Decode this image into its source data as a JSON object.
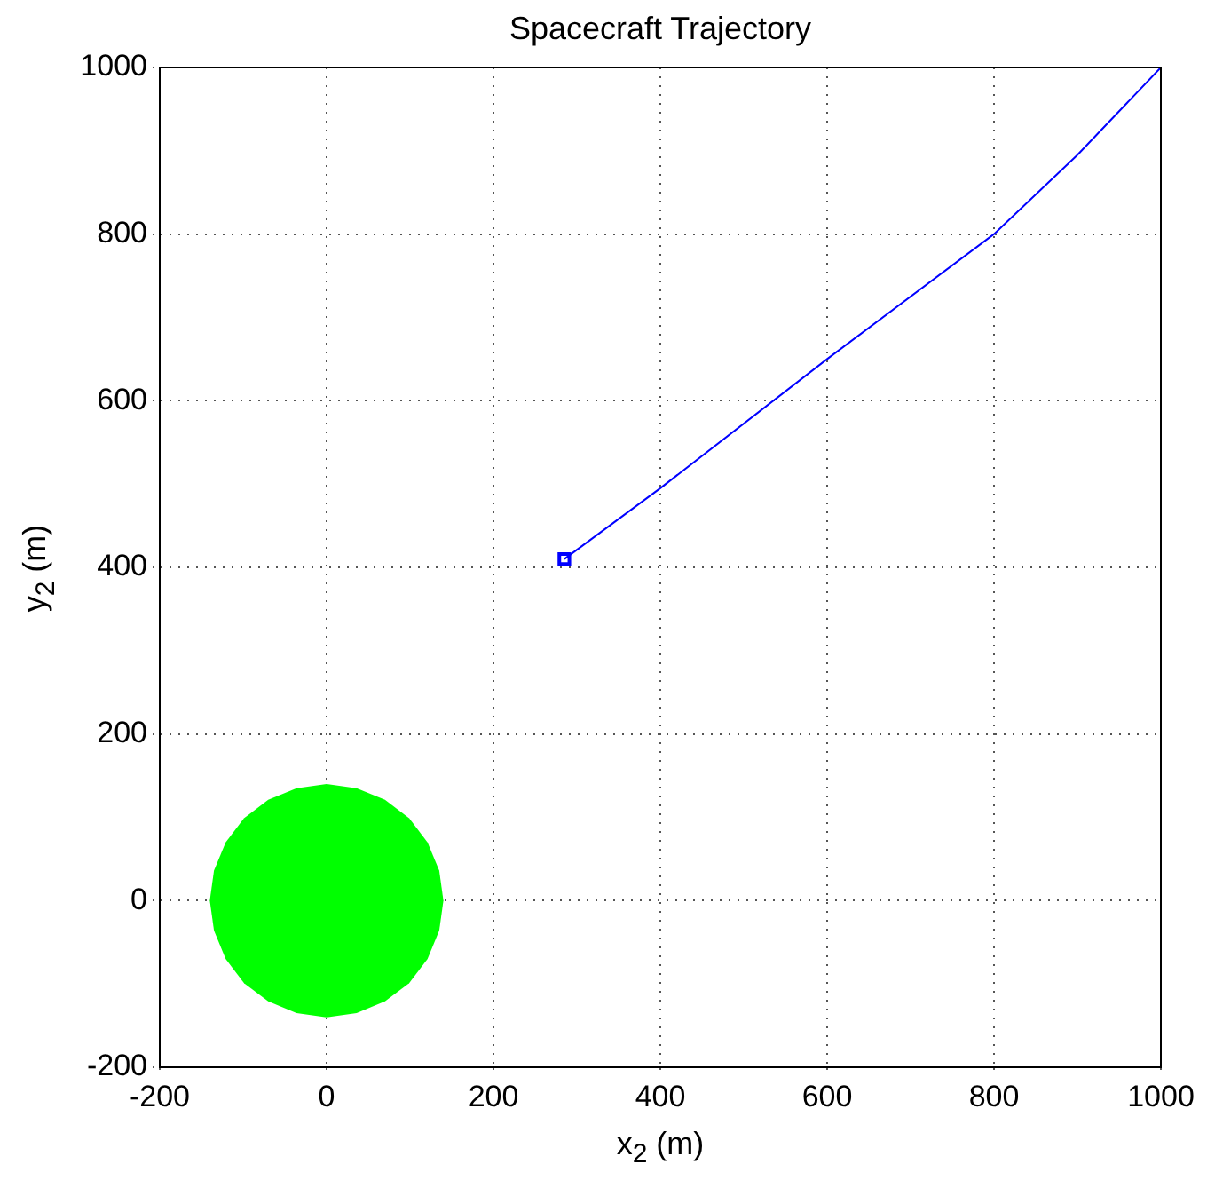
{
  "chart_data": {
    "type": "line",
    "title": "Spacecraft Trajectory",
    "xlabel": "x$_{2}$ (m)",
    "ylabel": "y$_{2}$ (m)",
    "xlim": [
      -200,
      1000
    ],
    "ylim": [
      -200,
      1000
    ],
    "xticks": [
      -200,
      0,
      200,
      400,
      600,
      800,
      1000
    ],
    "yticks": [
      -200,
      0,
      200,
      400,
      600,
      800,
      1000
    ],
    "grid": true,
    "legend": false,
    "series": [
      {
        "type": "area",
        "color": "#00ff00",
        "x": [
          140,
          135,
          121,
          99,
          70,
          36,
          0,
          -36,
          -70,
          -99,
          -121,
          -135,
          -140,
          -135,
          -121,
          -99,
          -70,
          -36,
          0,
          36,
          70,
          99,
          121,
          135,
          140
        ],
        "values": [
          0,
          36,
          70,
          99,
          121,
          135,
          140,
          135,
          121,
          99,
          70,
          36,
          0,
          -36,
          -70,
          -99,
          -121,
          -135,
          -140,
          -135,
          -121,
          -99,
          -70,
          -36,
          0
        ]
      },
      {
        "type": "line",
        "color": "#0000ff",
        "marker": "none",
        "x": [
          1000,
          900,
          800,
          600,
          400,
          285
        ],
        "values": [
          1000,
          895,
          800,
          650,
          495,
          410
        ]
      },
      {
        "type": "scatter",
        "color": "#0000ff",
        "marker": "square",
        "x": [
          285
        ],
        "values": [
          410
        ]
      }
    ]
  }
}
